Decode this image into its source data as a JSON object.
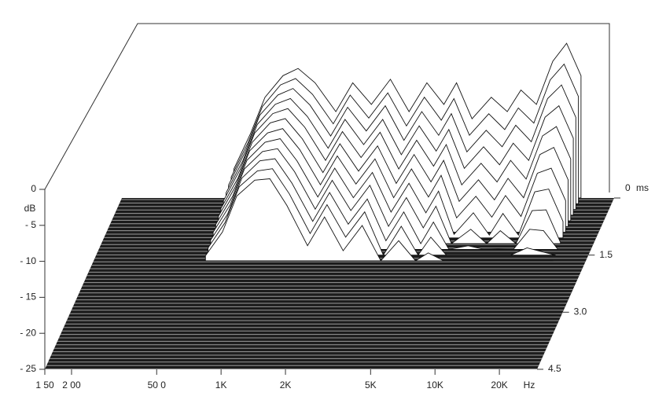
{
  "chart_data": {
    "type": "waterfall",
    "x_unit": "Hz",
    "y_unit": "dB",
    "z_unit": "ms",
    "xscale": "log",
    "xlim": [
      150,
      30000
    ],
    "xticks": [
      {
        "value": 150,
        "label": "1 50"
      },
      {
        "value": 200,
        "label": "2 00"
      },
      {
        "value": 500,
        "label": "50 0"
      },
      {
        "value": 1000,
        "label": "1K"
      },
      {
        "value": 2000,
        "label": "2K"
      },
      {
        "value": 5000,
        "label": "5K"
      },
      {
        "value": 10000,
        "label": "10K"
      },
      {
        "value": 20000,
        "label": "20K"
      }
    ],
    "ylim": [
      -25,
      0
    ],
    "yticks": [
      0,
      {
        "value": -5,
        "label": "- 5"
      },
      {
        "value": -10,
        "label": "- 10"
      },
      {
        "value": -15,
        "label": "- 15"
      },
      {
        "value": -20,
        "label": "- 20"
      },
      {
        "value": -25,
        "label": "- 25"
      }
    ],
    "zlim": [
      0,
      4.5
    ],
    "zticks": [
      0,
      1.5,
      {
        "value": 3,
        "label": "3.0"
      },
      4.5
    ],
    "x": [
      500,
      600,
      700,
      850,
      1000,
      1200,
      1500,
      1800,
      2200,
      2700,
      3300,
      4000,
      4800,
      5500,
      6500,
      8000,
      9500,
      11000,
      13000,
      15500,
      18000,
      21000
    ],
    "series": [
      {
        "t": 0,
        "values": [
          -21,
          -16,
          -11,
          -8,
          -7,
          -9,
          -13,
          -9,
          -12,
          -8.5,
          -13,
          -9,
          -12,
          -9,
          -14,
          -11,
          -13,
          -10,
          -12,
          -6,
          -3.5,
          -8
        ]
      },
      {
        "t": 0.15,
        "values": [
          -21.3,
          -16.5,
          -11.5,
          -8.5,
          -7.6,
          -9.8,
          -13.9,
          -9.9,
          -13.1,
          -9.6,
          -14.2,
          -10.2,
          -13.4,
          -10.4,
          -15.5,
          -12.5,
          -14.7,
          -11.7,
          -13.8,
          -7.8,
          -5.6,
          -10.1
        ]
      },
      {
        "t": 0.3,
        "values": [
          -21.6,
          -16.9,
          -11.9,
          -9.1,
          -8.2,
          -10.5,
          -14.8,
          -10.8,
          -14.1,
          -10.6,
          -15.4,
          -11.4,
          -14.7,
          -11.7,
          -17,
          -14,
          -16.3,
          -13.3,
          -15.6,
          -9.6,
          -7.7,
          -12.2
        ]
      },
      {
        "t": 0.45,
        "values": [
          -21.9,
          -17.4,
          -12.4,
          -9.6,
          -8.8,
          -11.3,
          -15.7,
          -11.7,
          -15.2,
          -11.7,
          -16.6,
          -12.6,
          -16.1,
          -13.1,
          -18.5,
          -15.5,
          -18,
          -15,
          -17.4,
          -11.4,
          -9.8,
          -14.3
        ]
      },
      {
        "t": 0.6,
        "values": [
          -22.2,
          -17.8,
          -12.8,
          -10.1,
          -9.4,
          -12,
          -16.6,
          -12.6,
          -16.2,
          -12.7,
          -17.8,
          -13.8,
          -17.4,
          -14.4,
          -20,
          -17,
          -19.6,
          -16.6,
          -19.2,
          -13.2,
          -11.9,
          -16.4
        ]
      },
      {
        "t": 0.75,
        "values": [
          -22.5,
          -18.3,
          -13.3,
          -10.6,
          -10,
          -12.8,
          -17.5,
          -13.5,
          -17.3,
          -13.8,
          -19,
          -15,
          -18.8,
          -15.8,
          -21.5,
          -18.5,
          -21.3,
          -18.3,
          -21,
          -15,
          -14,
          -18.5
        ]
      },
      {
        "t": 0.9,
        "values": [
          -22.8,
          -18.7,
          -13.7,
          -11.2,
          -10.6,
          -13.5,
          -18.4,
          -14.4,
          -18.3,
          -14.8,
          -20.2,
          -16.2,
          -20.1,
          -17.1,
          -23,
          -20,
          -22.9,
          -19.9,
          -22.8,
          -16.8,
          -16.1,
          -20.6
        ]
      },
      {
        "t": 1.05,
        "values": [
          -23.1,
          -19.2,
          -14.2,
          -11.7,
          -11.2,
          -14.3,
          -19.3,
          -15.3,
          -19.4,
          -15.9,
          -21.4,
          -17.4,
          -21.5,
          -18.5,
          -24.5,
          -21.5,
          -24.6,
          -21.6,
          -24.6,
          -18.6,
          -18.2,
          -22.7
        ]
      },
      {
        "t": 1.2,
        "values": [
          -23.4,
          -19.6,
          -14.6,
          -12.2,
          -11.8,
          -15,
          -20.2,
          -16.2,
          -20.4,
          -16.9,
          -22.6,
          -18.6,
          -22.8,
          -19.8,
          -25,
          -23,
          -25,
          -23.2,
          -25,
          -20.4,
          -20.3,
          -24.8
        ]
      },
      {
        "t": 1.35,
        "values": [
          -23.7,
          -20.1,
          -15.1,
          -12.7,
          -12.4,
          -15.8,
          -21.1,
          -17.1,
          -21.5,
          -18,
          -23.8,
          -19.8,
          -24.2,
          -21.2,
          -25,
          -24.5,
          -25,
          -24.9,
          -25,
          -22.2,
          -22.4,
          -25
        ]
      },
      {
        "t": 1.5,
        "values": [
          -24,
          -20.5,
          -15.5,
          -13.3,
          -13,
          -16.5,
          -22,
          -18,
          -22.5,
          -19,
          -25,
          -21,
          -25,
          -22.5,
          -25,
          -25,
          -25,
          -25,
          -25,
          -24,
          -24.5,
          -25
        ]
      },
      {
        "t": 1.65,
        "values": [
          -24.3,
          -21,
          -16,
          -13.8,
          -13.6,
          -17.3,
          -22.9,
          -18.9,
          -23.6,
          -20.1,
          -25,
          -22.2,
          -25,
          -23.9,
          -25,
          -25,
          -25,
          -25,
          -25,
          -25,
          -25,
          -25
        ]
      }
    ]
  }
}
